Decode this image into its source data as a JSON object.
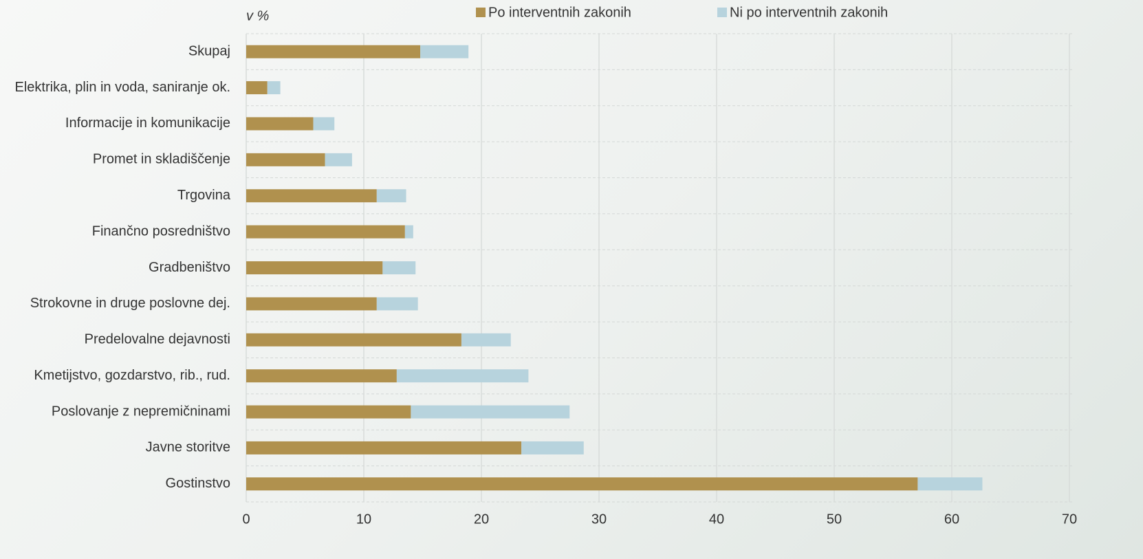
{
  "chart_data": {
    "type": "stacked_barh",
    "unit_label": "v %",
    "categories": [
      "Skupaj",
      "Elektrika, plin in voda, saniranje ok.",
      "Informacije in komunikacije",
      "Promet in skladiščenje",
      "Trgovina",
      "Finančno posredništvo",
      "Gradbeništvo",
      "Strokovne in druge poslovne dej.",
      "Predelovalne dejavnosti",
      "Kmetijstvo, gozdarstvo, rib., rud.",
      "Poslovanje z nepremičninami",
      "Javne storitve",
      "Gostinstvo"
    ],
    "series": [
      {
        "name": "Po interventnih zakonih",
        "color": "#b0914e",
        "values": [
          14.8,
          1.8,
          5.7,
          6.7,
          11.1,
          13.5,
          11.6,
          11.1,
          18.3,
          12.8,
          14.0,
          23.4,
          57.1
        ]
      },
      {
        "name": "Ni po interventnih zakonih",
        "color": "#b7d3dd",
        "values": [
          4.1,
          1.1,
          1.8,
          2.3,
          2.5,
          0.7,
          2.8,
          3.5,
          4.2,
          11.2,
          13.5,
          5.3,
          5.5
        ]
      }
    ],
    "xlim": [
      0,
      70
    ],
    "xticks": [
      0,
      10,
      20,
      30,
      40,
      50,
      60,
      70
    ],
    "grid": true
  }
}
